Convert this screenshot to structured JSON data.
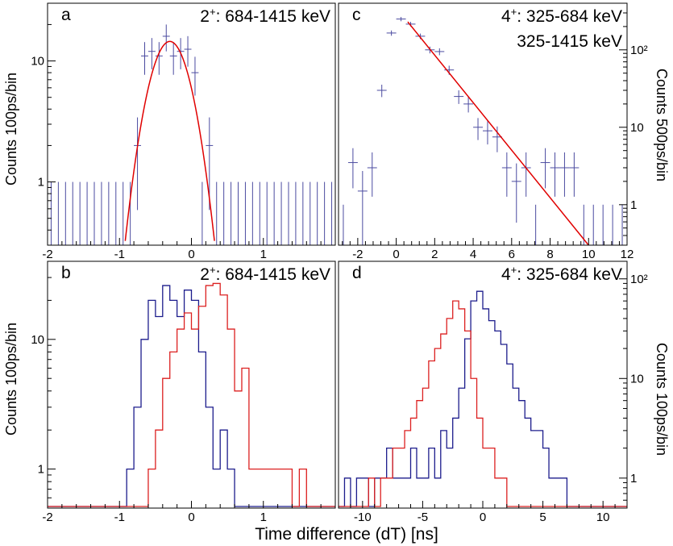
{
  "figure": {
    "xlabel": "Time difference (dT) [ns]",
    "colors": {
      "data": "#4b4ba0",
      "fit": "#e00000",
      "hist_blue": "#1c1c8c",
      "hist_red": "#dc2020"
    }
  },
  "chart_data": [
    {
      "panel": "a",
      "type": "scatter",
      "title": "2",
      "title_sup": "+",
      "title_rest": ": 684-1415 keV",
      "ylabel": "Counts 100ps/bin",
      "y_scale": "log",
      "xlim": [
        -2,
        2
      ],
      "ylim": [
        0.3,
        30
      ],
      "xticks": [
        -2,
        -1,
        0,
        1
      ],
      "yticks": [
        1,
        10
      ],
      "series": [
        {
          "kind": "points_with_errors",
          "points": [
            {
              "x": -0.75,
              "y": 2
            },
            {
              "x": -0.65,
              "y": 11
            },
            {
              "x": -0.55,
              "y": 12
            },
            {
              "x": -0.45,
              "y": 11
            },
            {
              "x": -0.35,
              "y": 16
            },
            {
              "x": -0.25,
              "y": 11
            },
            {
              "x": -0.15,
              "y": 12
            },
            {
              "x": -0.05,
              "y": 12.5
            },
            {
              "x": 0.05,
              "y": 8
            },
            {
              "x": 0.25,
              "y": 2
            }
          ],
          "zero_bins_x": [
            -1.95,
            -1.85,
            -1.75,
            -1.65,
            -1.55,
            -1.45,
            -1.35,
            -1.25,
            -1.15,
            -1.05,
            -0.95,
            -0.85,
            0.15,
            0.35,
            0.45,
            0.55,
            0.65,
            0.75,
            0.85,
            0.95,
            1.05,
            1.15,
            1.25,
            1.35,
            1.45,
            1.55,
            1.65,
            1.75,
            1.85,
            1.95
          ]
        },
        {
          "kind": "fit_gaussian",
          "mu": -0.3,
          "sigma": 0.225,
          "amplitude": 14.5
        }
      ]
    },
    {
      "panel": "c",
      "type": "scatter",
      "title": "4",
      "title_sup": "+",
      "title_rest": ":   325-684 keV",
      "title_line2": "325-1415 keV",
      "ylabel": "Counts 500ps/bin",
      "y_scale": "log",
      "xlim": [
        -3,
        12
      ],
      "ylim": [
        0.3,
        400
      ],
      "xticks": [
        -2,
        0,
        2,
        4,
        6,
        8,
        10,
        12
      ],
      "yticks": [
        1,
        10,
        100
      ],
      "ytick_labels": [
        "1",
        "10",
        "10²"
      ],
      "series": [
        {
          "kind": "points_with_errors",
          "points": [
            {
              "x": -2.25,
              "y": 3.5
            },
            {
              "x": -1.75,
              "y": 1.5
            },
            {
              "x": -1.25,
              "y": 3
            },
            {
              "x": -0.75,
              "y": 30
            },
            {
              "x": -0.25,
              "y": 165
            },
            {
              "x": 0.25,
              "y": 250
            },
            {
              "x": 0.75,
              "y": 215
            },
            {
              "x": 1.25,
              "y": 150
            },
            {
              "x": 1.75,
              "y": 100
            },
            {
              "x": 2.25,
              "y": 95
            },
            {
              "x": 2.75,
              "y": 55
            },
            {
              "x": 3.25,
              "y": 25
            },
            {
              "x": 3.75,
              "y": 20
            },
            {
              "x": 4.25,
              "y": 10
            },
            {
              "x": 4.75,
              "y": 9
            },
            {
              "x": 5.25,
              "y": 7.5
            },
            {
              "x": 5.75,
              "y": 3
            },
            {
              "x": 6.25,
              "y": 2
            },
            {
              "x": 6.75,
              "y": 3
            },
            {
              "x": 7.75,
              "y": 3.5
            },
            {
              "x": 8.25,
              "y": 3
            },
            {
              "x": 8.75,
              "y": 3
            },
            {
              "x": 9.25,
              "y": 3
            }
          ],
          "zero_bins_x": [
            -2.75,
            7.25,
            9.75,
            10.25,
            10.75,
            11.25,
            11.75
          ]
        },
        {
          "kind": "fit_exponential",
          "x_start": 0.6,
          "y_start": 230,
          "x_end": 10,
          "y_end": 0.3
        }
      ]
    },
    {
      "panel": "b",
      "type": "line",
      "title": "2",
      "title_sup": "+",
      "title_rest": ": 684-1415 keV",
      "ylabel": "Counts 100ps/bin",
      "y_scale": "log",
      "xlim": [
        -2,
        2
      ],
      "ylim": [
        0.5,
        40
      ],
      "xticks": [
        -2,
        -1,
        0,
        1
      ],
      "yticks": [
        1,
        10
      ],
      "bin_width": 0.1,
      "series": [
        {
          "name": "",
          "color": "blue",
          "x_start": -1.0,
          "values": [
            0.5,
            1,
            3,
            10,
            20,
            15,
            26,
            20,
            15,
            24,
            20,
            8,
            3,
            1,
            2,
            1,
            0.5
          ]
        },
        {
          "name": "",
          "color": "red",
          "x_start": -0.6,
          "values": [
            1,
            2,
            5,
            8,
            12,
            16,
            12,
            18,
            26,
            27,
            22,
            12,
            4,
            6,
            1,
            1,
            1,
            1,
            1,
            1,
            0.5,
            1,
            0.5
          ]
        }
      ]
    },
    {
      "panel": "d",
      "type": "line",
      "title": "4",
      "title_sup": "+",
      "title_rest": ": 325-684 keV",
      "ylabel": "Counts 100ps/bin",
      "y_scale": "log",
      "xlim": [
        -12,
        12
      ],
      "ylim": [
        0.5,
        150
      ],
      "xticks": [
        -10,
        -5,
        0,
        5,
        10
      ],
      "yticks": [
        1,
        10,
        100
      ],
      "ytick_labels": [
        "1",
        "10",
        "10²"
      ],
      "bin_width": 0.5,
      "series": [
        {
          "name": "",
          "color": "blue",
          "x_start": -11.5,
          "values": [
            1,
            0.5,
            1,
            1,
            0.5,
            1,
            1,
            2,
            1,
            1,
            1,
            2,
            1,
            1,
            2,
            1,
            3,
            2,
            4,
            8,
            25,
            60,
            75,
            50,
            38,
            30,
            22,
            14,
            8,
            6,
            4,
            3,
            3,
            2,
            1,
            1,
            1,
            0.5,
            0.5,
            0.5
          ]
        },
        {
          "name": "",
          "color": "red",
          "x_start": -10,
          "values": [
            0.5,
            1,
            0.5,
            1,
            1,
            2,
            2,
            3,
            4,
            6,
            8,
            15,
            20,
            28,
            40,
            60,
            50,
            30,
            10,
            4,
            2,
            2,
            1,
            1,
            0.5
          ]
        }
      ]
    }
  ]
}
